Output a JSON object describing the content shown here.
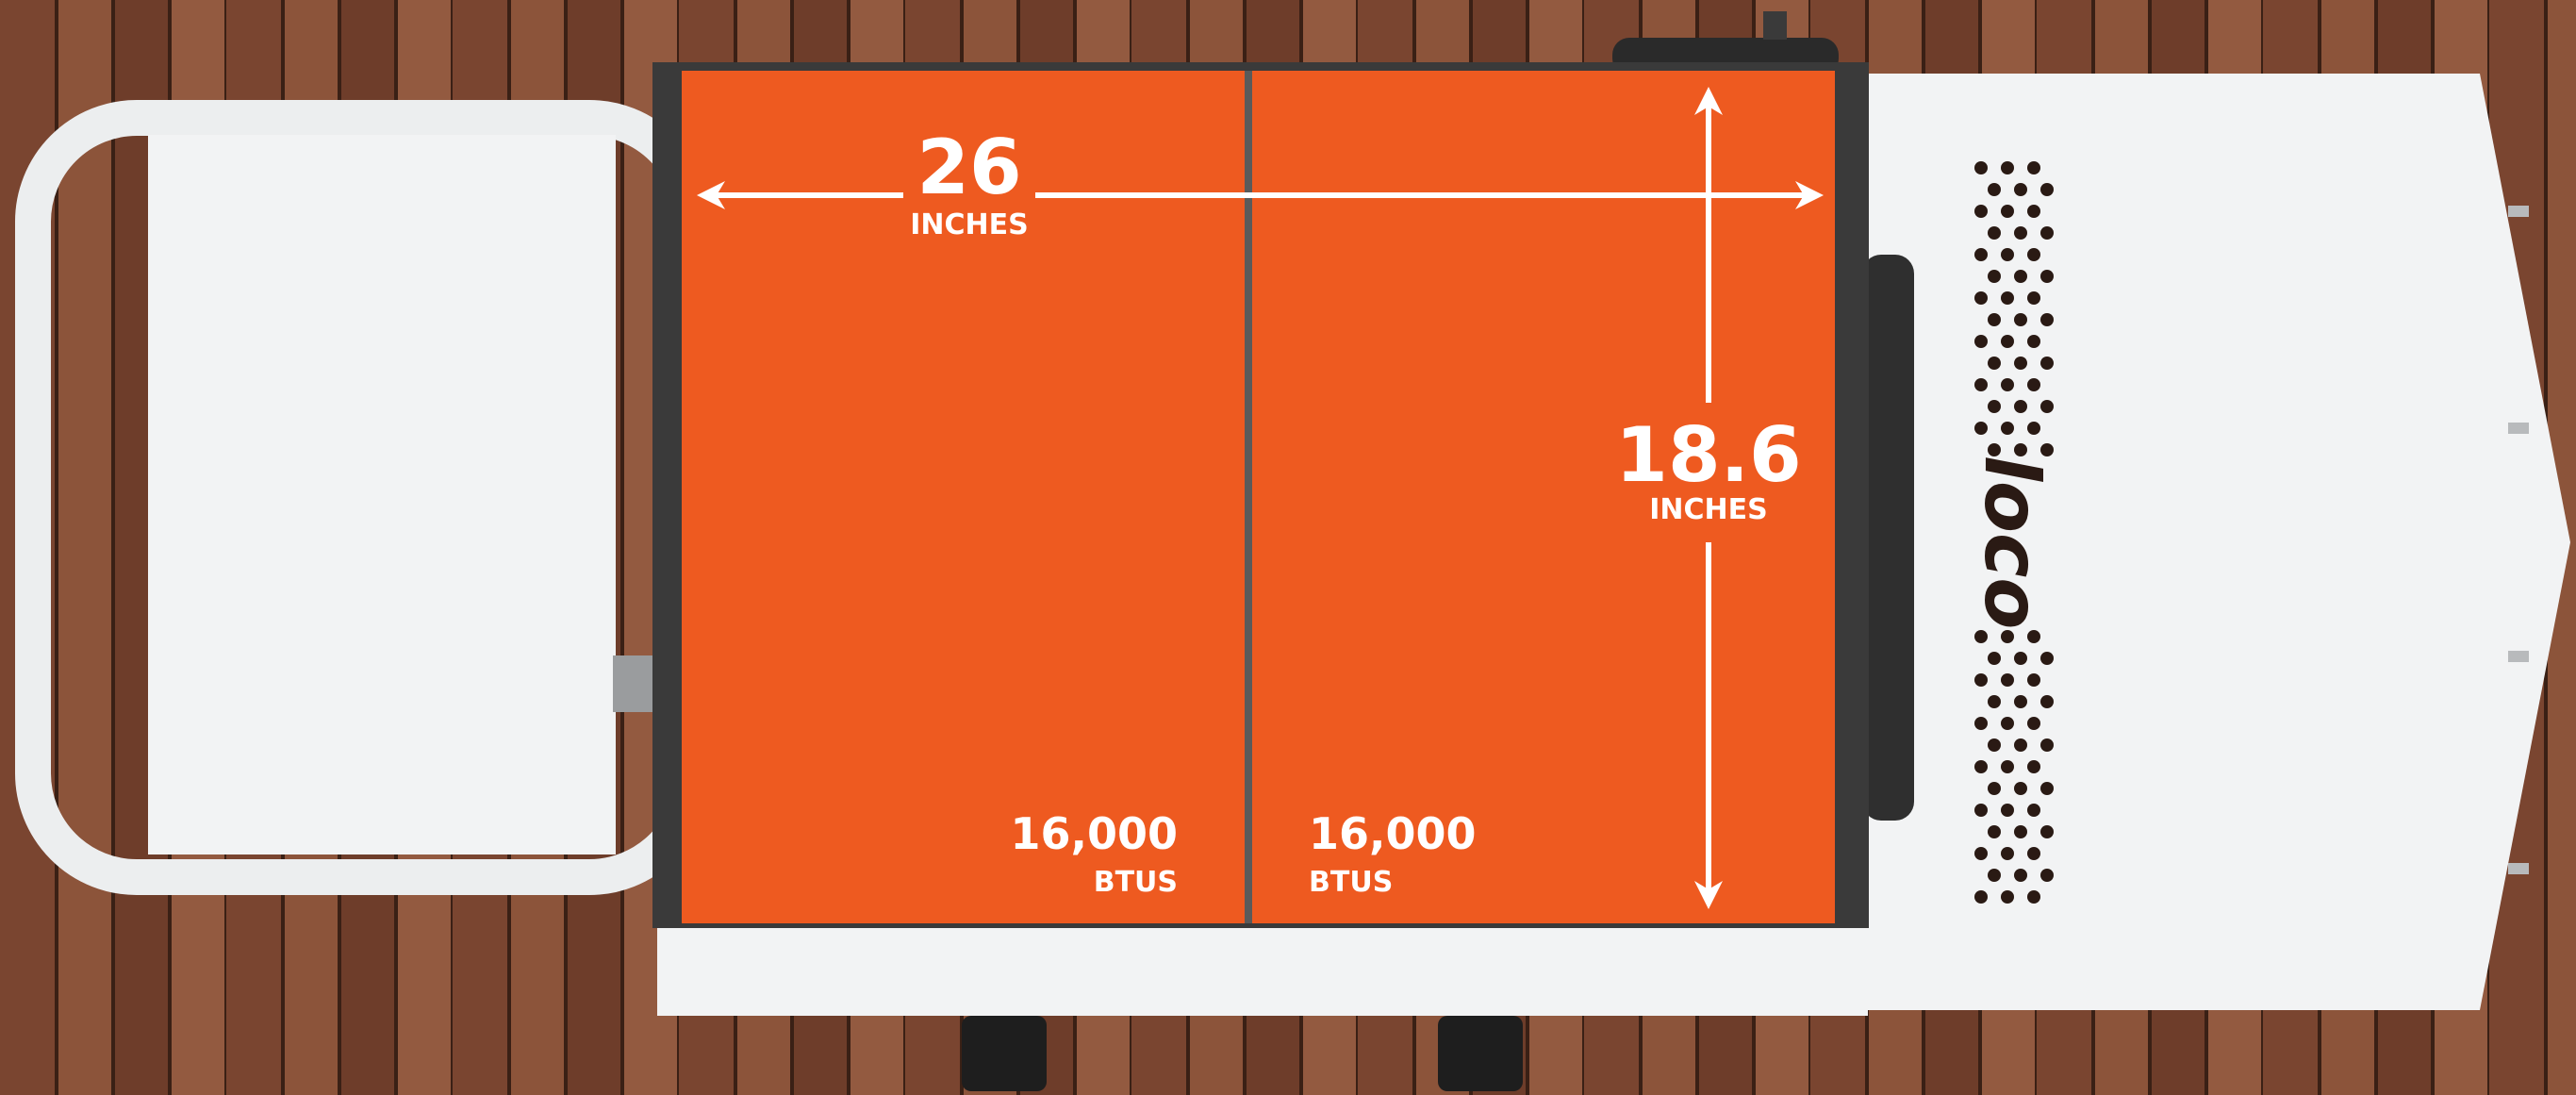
{
  "griddle": {
    "width": {
      "value": "26",
      "unit": "INCHES"
    },
    "depth": {
      "value": "18.6",
      "unit": "INCHES"
    },
    "burners": [
      {
        "output": "16,000",
        "unit": "BTUS"
      },
      {
        "output": "16,000",
        "unit": "BTUS"
      }
    ],
    "brand": "loco"
  }
}
